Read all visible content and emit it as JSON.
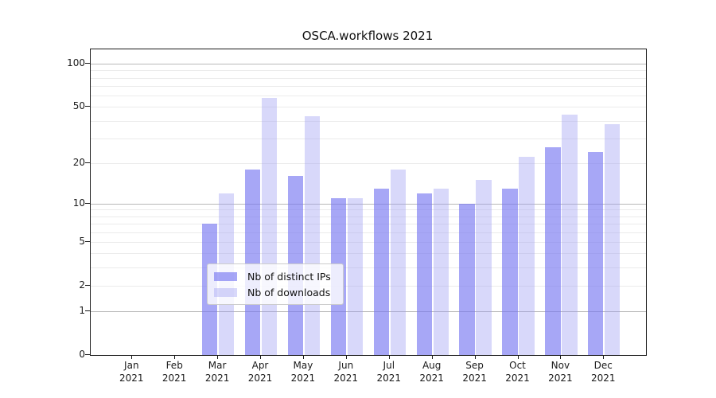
{
  "chart_data": {
    "type": "bar",
    "title": "OSCA.workflows 2021",
    "categories": [
      {
        "month": "Jan",
        "year": "2021"
      },
      {
        "month": "Feb",
        "year": "2021"
      },
      {
        "month": "Mar",
        "year": "2021"
      },
      {
        "month": "Apr",
        "year": "2021"
      },
      {
        "month": "May",
        "year": "2021"
      },
      {
        "month": "Jun",
        "year": "2021"
      },
      {
        "month": "Jul",
        "year": "2021"
      },
      {
        "month": "Aug",
        "year": "2021"
      },
      {
        "month": "Sep",
        "year": "2021"
      },
      {
        "month": "Oct",
        "year": "2021"
      },
      {
        "month": "Nov",
        "year": "2021"
      },
      {
        "month": "Dec",
        "year": "2021"
      }
    ],
    "series": [
      {
        "name": "Nb of distinct IPs",
        "color": "rgba(120,120,241,0.65)",
        "values": [
          0,
          0,
          7,
          18,
          16,
          11,
          13,
          12,
          10,
          13,
          26,
          24
        ]
      },
      {
        "name": "Nb of downloads",
        "color": "rgba(158,158,243,0.40)",
        "values": [
          0,
          0,
          12,
          58,
          43,
          11,
          18,
          13,
          15,
          22,
          44,
          38
        ]
      }
    ],
    "y_axis": {
      "scale": "log1p",
      "ticks": [
        100,
        50,
        20,
        10,
        5,
        2,
        1,
        0
      ],
      "tick_labels": [
        "100",
        "50",
        "20",
        "10",
        "5",
        "2",
        "1",
        "0"
      ],
      "minor_grid_values": [
        2,
        3,
        4,
        5,
        6,
        7,
        8,
        9,
        20,
        30,
        40,
        50,
        60,
        70,
        80,
        90
      ],
      "major_grid_values": [
        1,
        10,
        100
      ]
    },
    "legend_position": "lower center",
    "grid": true
  }
}
